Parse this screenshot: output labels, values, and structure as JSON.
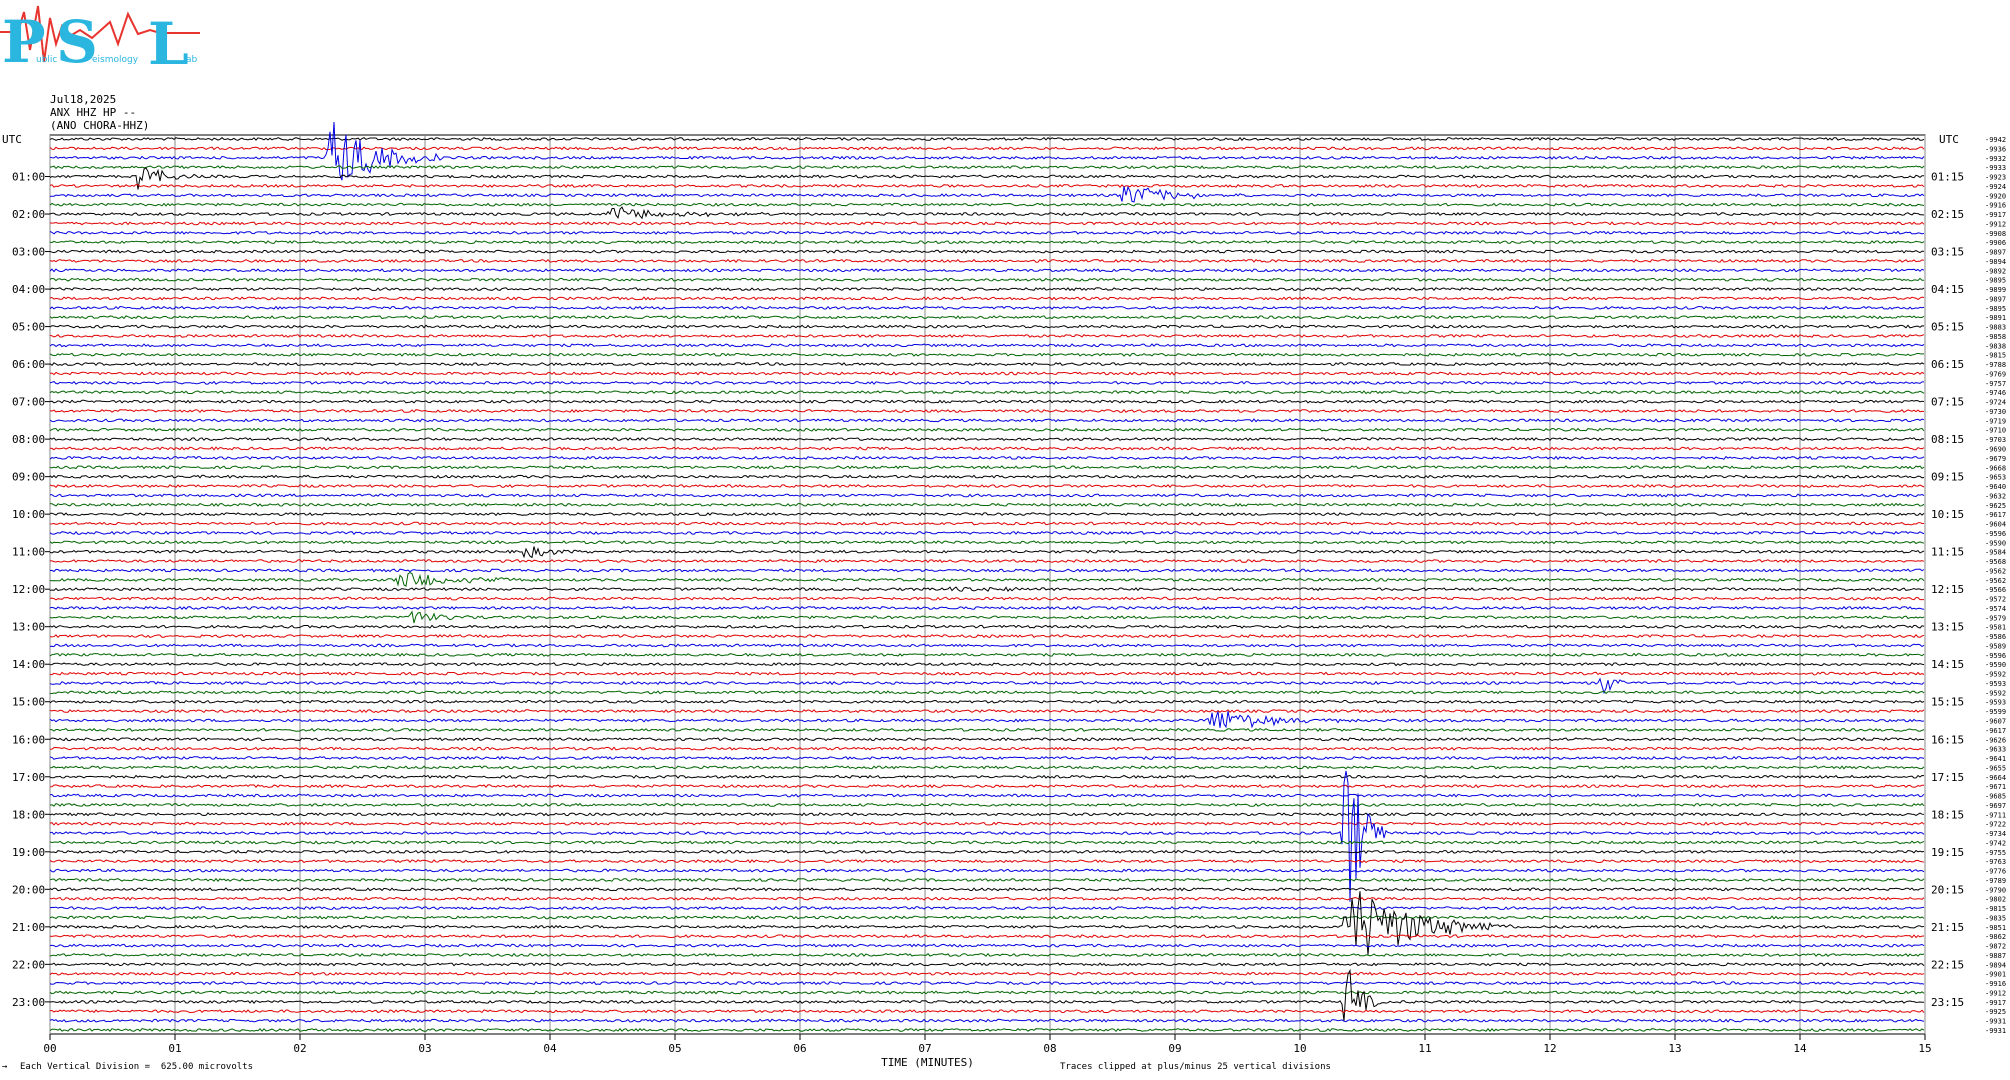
{
  "logo": {
    "big_letters": [
      "P",
      "S",
      "L"
    ],
    "small_text": [
      "ublic",
      "eismology",
      "ab"
    ],
    "colors": {
      "letters": "#2bb6e0",
      "waveform": "#e8342e"
    }
  },
  "header": {
    "date": "Jul18,2025",
    "station": "ANX HHZ HP --",
    "name": "(ANO CHORA-HHZ)"
  },
  "chart_data": {
    "type": "line",
    "xlabel": "TIME (MINUTES)",
    "x_ticks": [
      "00",
      "01",
      "02",
      "03",
      "04",
      "05",
      "06",
      "07",
      "08",
      "09",
      "10",
      "11",
      "12",
      "13",
      "14",
      "15"
    ],
    "xlim": [
      0,
      15
    ],
    "left_axis_title": "UTC",
    "right_axis_title": "UTC",
    "left_labels": [
      "01:00",
      "02:00",
      "03:00",
      "04:00",
      "05:00",
      "06:00",
      "07:00",
      "08:00",
      "09:00",
      "10:00",
      "11:00",
      "12:00",
      "13:00",
      "14:00",
      "15:00",
      "16:00",
      "17:00",
      "18:00",
      "19:00",
      "20:00",
      "21:00",
      "22:00",
      "23:00"
    ],
    "right_labels": [
      "01:15",
      "02:15",
      "03:15",
      "04:15",
      "05:15",
      "06:15",
      "07:15",
      "08:15",
      "09:15",
      "10:15",
      "11:15",
      "12:15",
      "13:15",
      "14:15",
      "15:15",
      "16:15",
      "17:15",
      "18:15",
      "19:15",
      "20:15",
      "21:15",
      "22:15",
      "23:15"
    ],
    "trace_colors": [
      "#000000",
      "#e00000",
      "#0000e0",
      "#006400"
    ],
    "trace_count": 96,
    "trace_offsets": [
      "-9942",
      "-9936",
      "-9932",
      "-9933",
      "-9923",
      "-9924",
      "-9920",
      "-9916",
      "-9917",
      "-9912",
      "-9908",
      "-9906",
      "-9897",
      "-9894",
      "-9892",
      "-9895",
      "-9899",
      "-9897",
      "-9895",
      "-9891",
      "-9883",
      "-9858",
      "-9838",
      "-9815",
      "-9788",
      "-9769",
      "-9757",
      "-9746",
      "-9724",
      "-9730",
      "-9719",
      "-9710",
      "-9703",
      "-9690",
      "-9679",
      "-9668",
      "-9653",
      "-9640",
      "-9632",
      "-9625",
      "-9617",
      "-9604",
      "-9596",
      "-9590",
      "-9584",
      "-9568",
      "-9562",
      "-9562",
      "-9566",
      "-9572",
      "-9574",
      "-9579",
      "-9581",
      "-9586",
      "-9589",
      "-9596",
      "-9590",
      "-9592",
      "-9593",
      "-9592",
      "-9593",
      "-9599",
      "-9607",
      "-9617",
      "-9626",
      "-9633",
      "-9641",
      "-9655",
      "-9664",
      "-9671",
      "-9685",
      "-9697",
      "-9711",
      "-9722",
      "-9734",
      "-9742",
      "-9755",
      "-9763",
      "-9776",
      "-9789",
      "-9790",
      "-9802",
      "-9815",
      "-9835",
      "-9851",
      "-9862",
      "-9872",
      "-9887",
      "-9894",
      "-9901",
      "-9916",
      "-9912",
      "-9917",
      "-9925",
      "-9931",
      "-9931"
    ],
    "events": [
      {
        "trace": 4,
        "minute": 0.7,
        "amplitude": 1.6,
        "duration": 0.5
      },
      {
        "trace": 2,
        "minute": 2.25,
        "amplitude": 4.5,
        "duration": 0.9
      },
      {
        "trace": 6,
        "minute": 8.6,
        "amplitude": 1.4,
        "duration": 1.0
      },
      {
        "trace": 8,
        "minute": 4.5,
        "amplitude": 0.8,
        "duration": 1.4
      },
      {
        "trace": 44,
        "minute": 3.8,
        "amplitude": 0.8,
        "duration": 0.5
      },
      {
        "trace": 47,
        "minute": 2.8,
        "amplitude": 1.0,
        "duration": 1.2
      },
      {
        "trace": 48,
        "minute": 7.2,
        "amplitude": 0.6,
        "duration": 0.8
      },
      {
        "trace": 51,
        "minute": 2.9,
        "amplitude": 0.8,
        "duration": 0.6
      },
      {
        "trace": 58,
        "minute": 12.4,
        "amplitude": 1.4,
        "duration": 0.3
      },
      {
        "trace": 62,
        "minute": 9.3,
        "amplitude": 1.4,
        "duration": 1.2
      },
      {
        "trace": 74,
        "minute": 10.35,
        "amplitude": 12.0,
        "duration": 0.35
      },
      {
        "trace": 84,
        "minute": 10.4,
        "amplitude": 5.0,
        "duration": 1.3
      },
      {
        "trace": 92,
        "minute": 10.35,
        "amplitude": 6.0,
        "duration": 0.3
      }
    ]
  },
  "footer": {
    "scale_note": "Each Vertical Division =  625.00 microvolts",
    "clip_note": "Traces clipped at plus/minus 25 vertical divisions",
    "corner_mark": "→"
  }
}
